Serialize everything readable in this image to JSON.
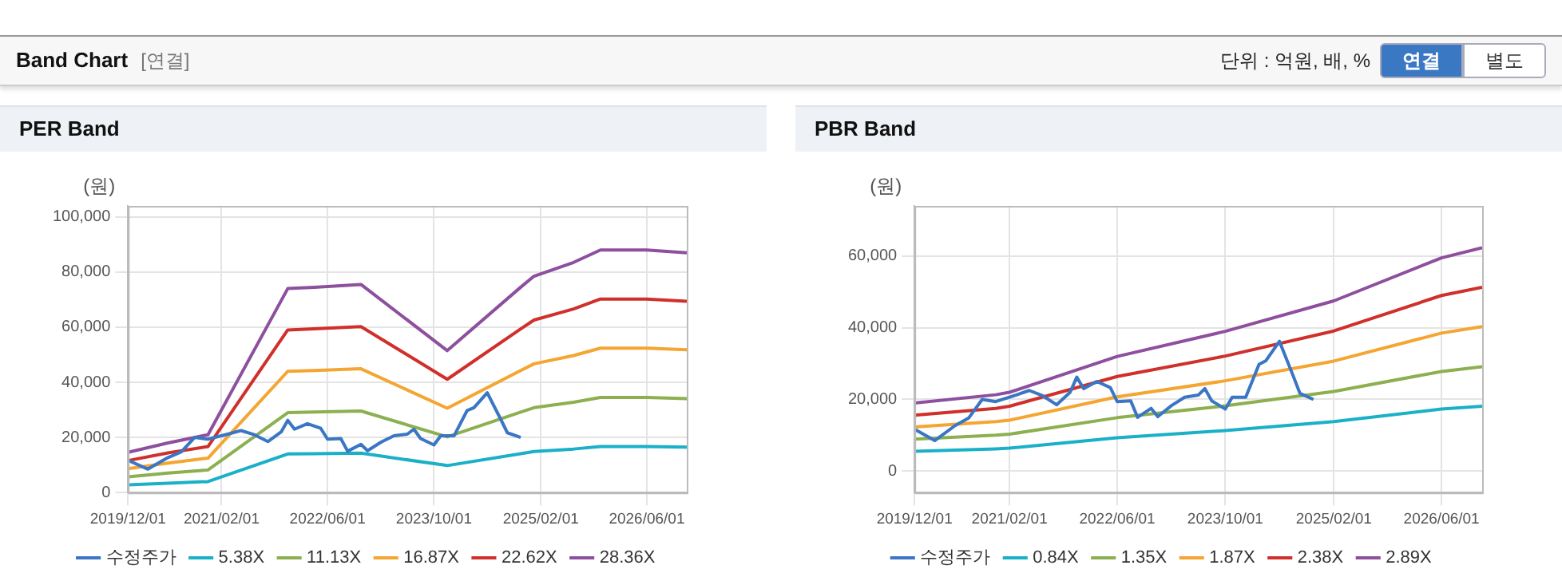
{
  "chart_data": [
    {
      "type": "other",
      "title": "Band Chart",
      "subtitle": "[연결]",
      "annotations": [
        "단위 : 억원, 배, %",
        "연결",
        "별도"
      ]
    },
    {
      "type": "line",
      "title": "PER Band",
      "ylabel": "(원)",
      "legend": "bottom",
      "grid": true,
      "marker": "none",
      "line_style": "solid",
      "xlim": [
        "2019-12-01",
        "2026-12-01"
      ],
      "xticks": [
        {
          "value": "2019-12-01",
          "label": "2019/12/01"
        },
        {
          "value": "2021-02-01",
          "label": "2021/02/01"
        },
        {
          "value": "2022-06-01",
          "label": "2022/06/01"
        },
        {
          "value": "2023-10-01",
          "label": "2023/10/01"
        },
        {
          "value": "2025-02-01",
          "label": "2025/02/01"
        },
        {
          "value": "2026-06-01",
          "label": "2026/06/01"
        }
      ],
      "ylim": [
        0,
        104000
      ],
      "yticks": [
        {
          "value": 0,
          "label": "0"
        },
        {
          "value": 20000,
          "label": "20,000"
        },
        {
          "value": 40000,
          "label": "40,000"
        },
        {
          "value": 60000,
          "label": "60,000"
        },
        {
          "value": 80000,
          "label": "80,000"
        },
        {
          "value": 100000,
          "label": "100,000"
        }
      ],
      "series": [
        {
          "name": "수정주가",
          "color": "#3a76c4",
          "x": [
            "2019-12",
            "2020-03",
            "2020-06",
            "2020-08",
            "2020-10",
            "2020-12",
            "2021-03",
            "2021-05",
            "2021-07",
            "2021-09",
            "2021-11",
            "2021-12",
            "2022-01",
            "2022-03",
            "2022-05",
            "2022-06",
            "2022-08",
            "2022-09",
            "2022-11",
            "2022-12",
            "2023-02",
            "2023-04",
            "2023-06",
            "2023-07",
            "2023-08",
            "2023-10",
            "2023-11",
            "2024-01",
            "2024-03",
            "2024-04",
            "2024-06",
            "2024-08",
            "2024-09",
            "2024-11"
          ],
          "values": [
            11700,
            8500,
            12700,
            14800,
            20000,
            19400,
            21200,
            22500,
            21000,
            18500,
            22000,
            26200,
            23000,
            25000,
            23300,
            19400,
            19600,
            15000,
            17500,
            15200,
            18300,
            20600,
            21200,
            23000,
            19600,
            17300,
            20600,
            20600,
            29800,
            30800,
            36200,
            26700,
            21700,
            20000
          ]
        },
        {
          "name": "5.38X",
          "color": "#1ab0c8",
          "x": [
            "2019-12",
            "2020-06",
            "2020-12",
            "2021-12",
            "2022-04",
            "2022-11",
            "2023-12",
            "2024-11",
            "2025-01",
            "2025-07",
            "2025-11",
            "2026-06",
            "2026-12"
          ],
          "values": [
            2800,
            3400,
            4000,
            14000,
            14100,
            14300,
            9800,
            14100,
            14900,
            15800,
            16700,
            16700,
            16500
          ]
        },
        {
          "name": "11.13X",
          "color": "#8cb050",
          "x": [
            "2019-12",
            "2020-06",
            "2020-12",
            "2021-12",
            "2022-04",
            "2022-11",
            "2023-12",
            "2024-11",
            "2025-01",
            "2025-07",
            "2025-11",
            "2026-06",
            "2026-12"
          ],
          "values": [
            5700,
            7100,
            8200,
            29000,
            29200,
            29600,
            20200,
            29200,
            30800,
            32800,
            34500,
            34500,
            34100
          ]
        },
        {
          "name": "16.87X",
          "color": "#f4a532",
          "x": [
            "2019-12",
            "2020-06",
            "2020-12",
            "2021-12",
            "2022-04",
            "2022-11",
            "2023-12",
            "2024-11",
            "2025-01",
            "2025-07",
            "2025-11",
            "2026-06",
            "2026-12"
          ],
          "values": [
            8700,
            10700,
            12500,
            44000,
            44300,
            44900,
            30600,
            44300,
            46700,
            49700,
            52400,
            52400,
            51800
          ]
        },
        {
          "name": "22.62X",
          "color": "#d0302c",
          "x": [
            "2019-12",
            "2020-06",
            "2020-12",
            "2021-12",
            "2022-04",
            "2022-11",
            "2023-12",
            "2024-11",
            "2025-01",
            "2025-07",
            "2025-11",
            "2026-06",
            "2026-12"
          ],
          "values": [
            11600,
            14400,
            16700,
            59000,
            59400,
            60200,
            41100,
            59400,
            62600,
            66600,
            70200,
            70200,
            69400
          ]
        },
        {
          "name": "28.36X",
          "color": "#8e4f9e",
          "x": [
            "2019-12",
            "2020-06",
            "2020-12",
            "2021-12",
            "2022-04",
            "2022-11",
            "2023-12",
            "2024-11",
            "2025-01",
            "2025-07",
            "2025-11",
            "2026-06",
            "2026-12"
          ],
          "values": [
            14600,
            18000,
            21000,
            74000,
            74500,
            75500,
            51500,
            74500,
            78500,
            83500,
            88000,
            88000,
            87000
          ]
        }
      ]
    },
    {
      "type": "line",
      "title": "PBR Band",
      "ylabel": "(원)",
      "legend": "bottom",
      "grid": true,
      "marker": "none",
      "line_style": "solid",
      "xlim": [
        "2019-12-01",
        "2026-12-01"
      ],
      "xticks": [
        {
          "value": "2019-12-01",
          "label": "2019/12/01"
        },
        {
          "value": "2021-02-01",
          "label": "2021/02/01"
        },
        {
          "value": "2022-06-01",
          "label": "2022/06/01"
        },
        {
          "value": "2023-10-01",
          "label": "2023/10/01"
        },
        {
          "value": "2025-02-01",
          "label": "2025/02/01"
        },
        {
          "value": "2026-06-01",
          "label": "2026/06/01"
        }
      ],
      "ylim": [
        -6000,
        74000
      ],
      "yticks": [
        {
          "value": 0,
          "label": "0"
        },
        {
          "value": 20000,
          "label": "20,000"
        },
        {
          "value": 40000,
          "label": "40,000"
        },
        {
          "value": 60000,
          "label": "60,000"
        }
      ],
      "series": [
        {
          "name": "수정주가",
          "color": "#3a76c4",
          "x": [
            "2019-12",
            "2020-03",
            "2020-06",
            "2020-08",
            "2020-10",
            "2020-12",
            "2021-03",
            "2021-05",
            "2021-07",
            "2021-09",
            "2021-11",
            "2021-12",
            "2022-01",
            "2022-03",
            "2022-05",
            "2022-06",
            "2022-08",
            "2022-09",
            "2022-11",
            "2022-12",
            "2023-02",
            "2023-04",
            "2023-06",
            "2023-07",
            "2023-08",
            "2023-10",
            "2023-11",
            "2024-01",
            "2024-03",
            "2024-04",
            "2024-06",
            "2024-08",
            "2024-09",
            "2024-11"
          ],
          "values": [
            11700,
            8500,
            12700,
            14800,
            20000,
            19400,
            21200,
            22500,
            21000,
            18500,
            22000,
            26200,
            23000,
            25000,
            23300,
            19400,
            19600,
            15000,
            17500,
            15200,
            18300,
            20600,
            21200,
            23000,
            19600,
            17300,
            20600,
            20600,
            29800,
            30800,
            36200,
            26700,
            21700,
            20000
          ]
        },
        {
          "name": "0.84X",
          "color": "#1ab0c8",
          "x": [
            "2019-12",
            "2020-12",
            "2021-02",
            "2022-06",
            "2023-10",
            "2025-02",
            "2026-06",
            "2026-12"
          ],
          "values": [
            5500,
            6200,
            6400,
            9300,
            11300,
            13800,
            17300,
            18100
          ]
        },
        {
          "name": "1.35X",
          "color": "#8cb050",
          "x": [
            "2019-12",
            "2020-12",
            "2021-02",
            "2022-06",
            "2023-10",
            "2025-02",
            "2026-06",
            "2026-12"
          ],
          "values": [
            8900,
            10000,
            10300,
            14900,
            18200,
            22200,
            27800,
            29100
          ]
        },
        {
          "name": "1.87X",
          "color": "#f4a532",
          "x": [
            "2019-12",
            "2020-12",
            "2021-02",
            "2022-06",
            "2023-10",
            "2025-02",
            "2026-06",
            "2026-12"
          ],
          "values": [
            12300,
            13800,
            14200,
            20700,
            25200,
            30700,
            38500,
            40300
          ]
        },
        {
          "name": "2.38X",
          "color": "#d0302c",
          "x": [
            "2019-12",
            "2020-12",
            "2021-02",
            "2022-06",
            "2023-10",
            "2025-02",
            "2026-06",
            "2026-12"
          ],
          "values": [
            15600,
            17500,
            18100,
            26400,
            32100,
            39100,
            49000,
            51300
          ]
        },
        {
          "name": "2.89X",
          "color": "#8e4f9e",
          "x": [
            "2019-12",
            "2020-12",
            "2021-02",
            "2022-06",
            "2023-10",
            "2025-02",
            "2026-06",
            "2026-12"
          ],
          "values": [
            19000,
            21300,
            22000,
            32000,
            39000,
            47500,
            59500,
            62300
          ]
        }
      ]
    }
  ]
}
